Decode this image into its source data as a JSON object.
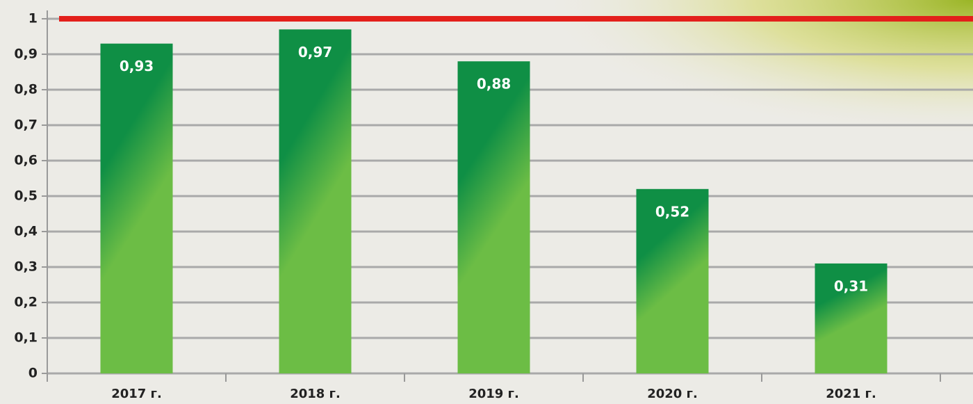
{
  "chart_data": {
    "type": "bar",
    "categories": [
      "2017 г.",
      "2018 г.",
      "2019 г.",
      "2020 г.",
      "2021 г."
    ],
    "values": [
      0.93,
      0.97,
      0.88,
      0.52,
      0.31
    ],
    "value_labels": [
      "0,93",
      "0,97",
      "0,88",
      "0,52",
      "0,31"
    ],
    "color": "#0f8f45",
    "ylim": [
      0,
      1
    ],
    "yticks": [
      0,
      {
        "value": 0.1,
        "label": "0,1"
      },
      {
        "value": 0.2,
        "label": "0,2"
      },
      {
        "value": 0.3,
        "label": "0,3"
      },
      {
        "value": 0.4,
        "label": "0,4"
      },
      {
        "value": 0.5,
        "label": "0,5"
      },
      {
        "value": 0.6,
        "label": "0,6"
      },
      {
        "value": 0.7,
        "label": "0,7"
      },
      {
        "value": 0.8,
        "label": "0,8"
      },
      {
        "value": 0.9,
        "label": "0,9"
      },
      1
    ],
    "grid": true,
    "reference_line": {
      "value": 1,
      "color": "#e3201b"
    }
  }
}
